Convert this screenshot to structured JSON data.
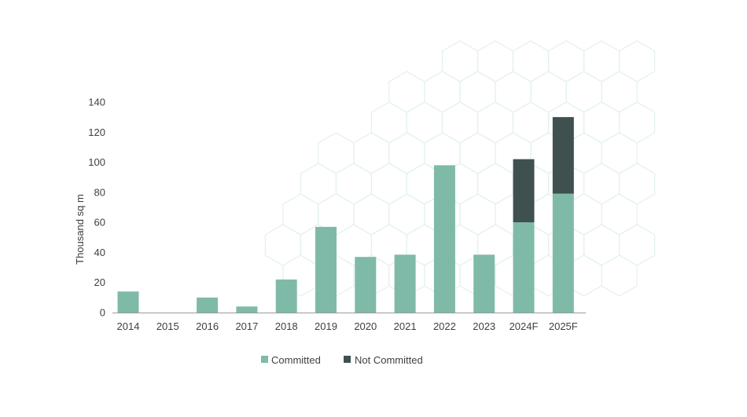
{
  "chart_data": {
    "type": "bar",
    "stacked": true,
    "categories": [
      "2014",
      "2015",
      "2016",
      "2017",
      "2018",
      "2019",
      "2020",
      "2021",
      "2022",
      "2023",
      "2024F",
      "2025F"
    ],
    "series": [
      {
        "name": "Committed",
        "color": "#7fbaa9",
        "values": [
          14,
          0,
          10,
          4,
          22,
          57,
          37,
          38.5,
          98,
          38.5,
          60,
          79
        ]
      },
      {
        "name": "Not Committed",
        "color": "#3f5050",
        "values": [
          0,
          0,
          0,
          0,
          0,
          0,
          0,
          0,
          0,
          0,
          42,
          51
        ]
      }
    ],
    "ylabel": "Thousand sq m",
    "ylim": [
      0,
      140
    ],
    "yticks": [
      0,
      20,
      40,
      60,
      80,
      100,
      120,
      140
    ],
    "grid": false,
    "legend_position": "bottom-center",
    "background_pattern": "hexagon-outlines"
  }
}
